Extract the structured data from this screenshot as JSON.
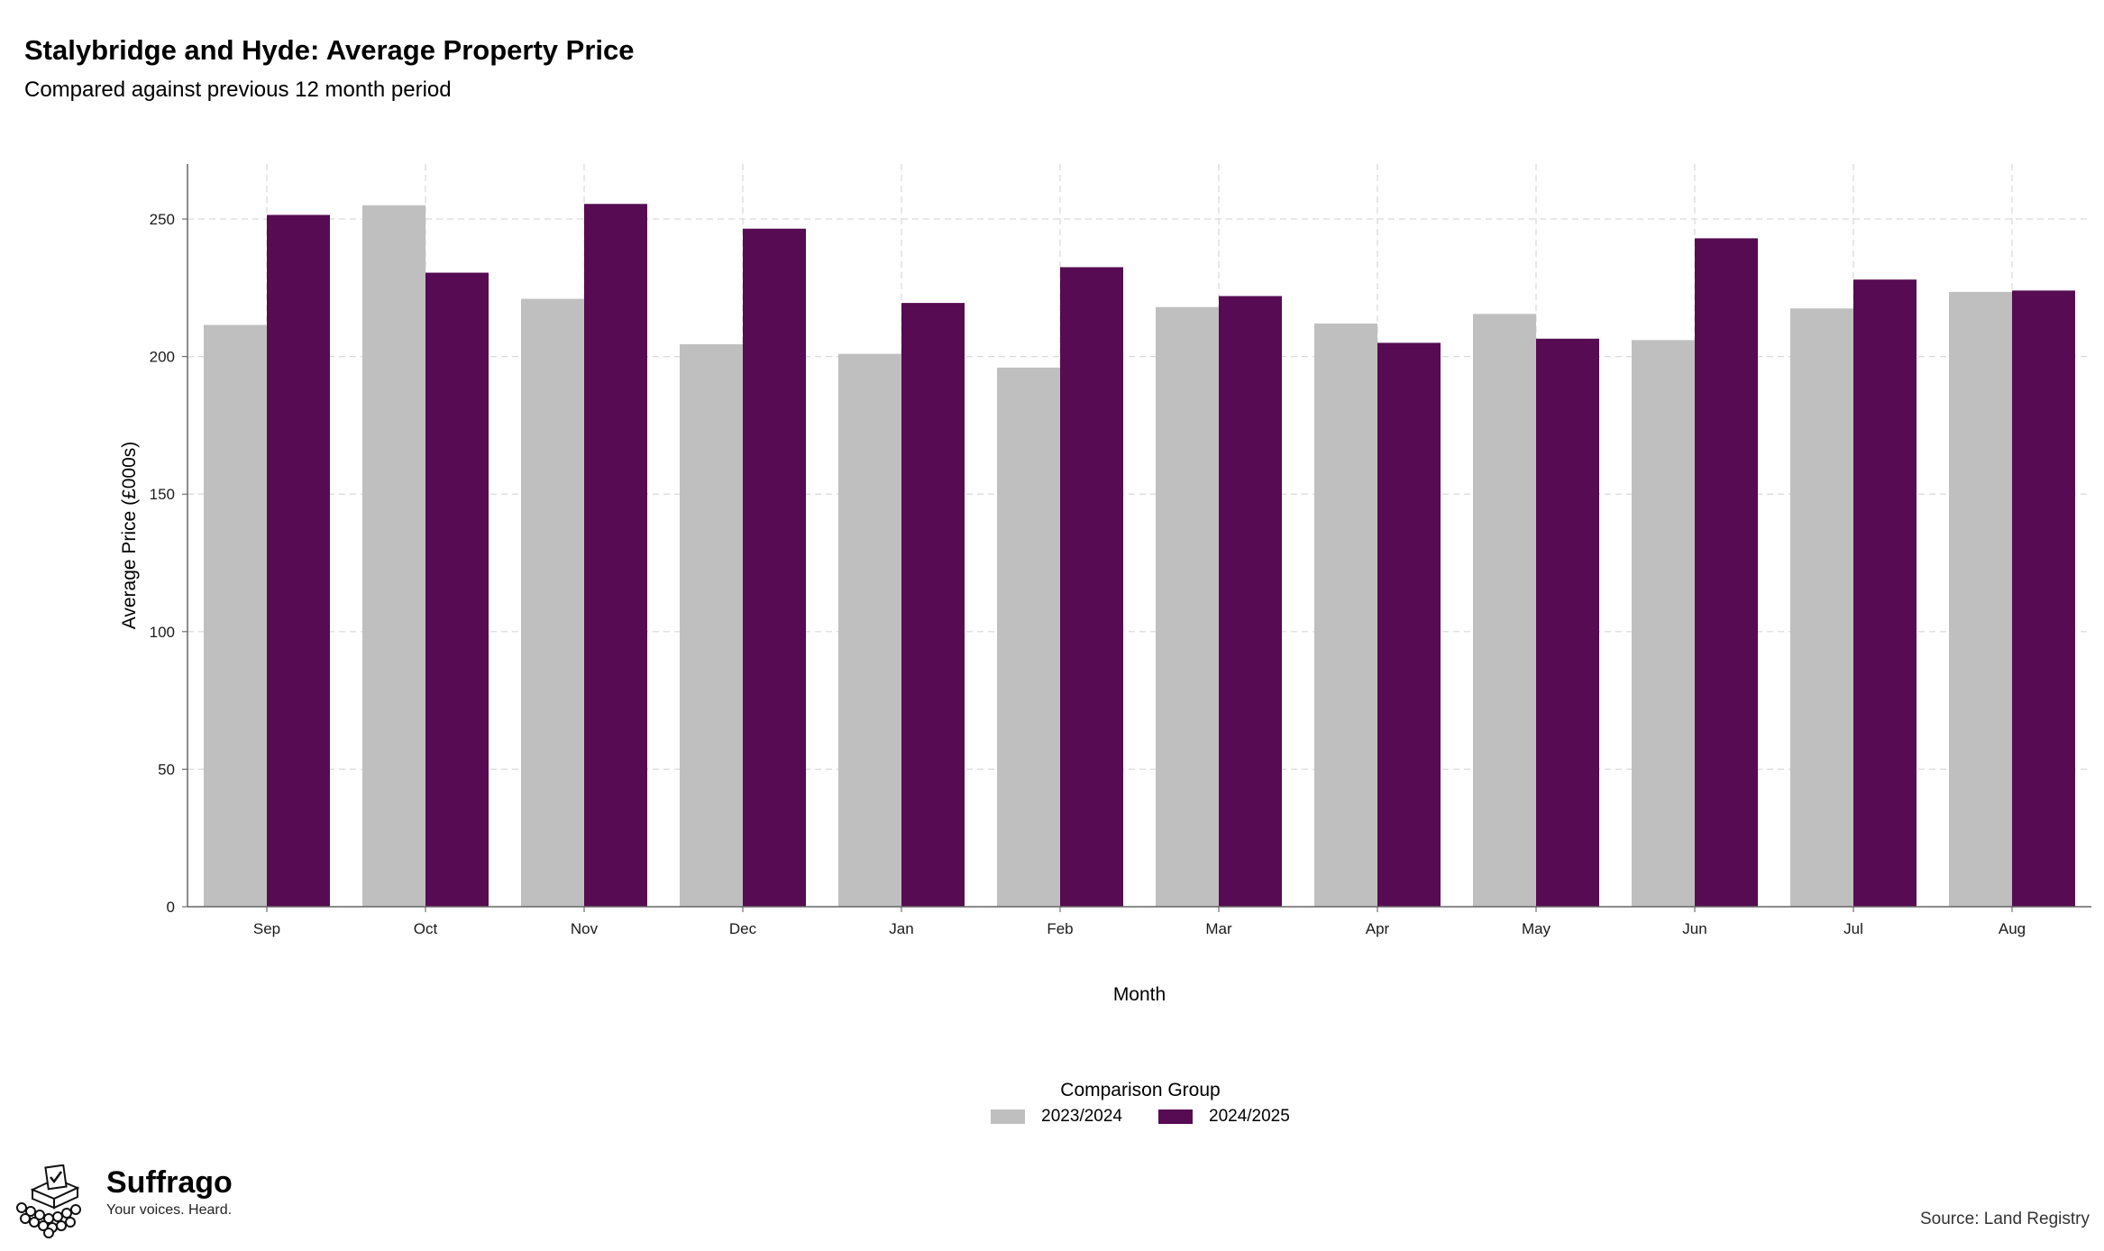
{
  "page": {
    "title": "Stalybridge and Hyde: Average Property Price",
    "subtitle": "Compared against previous 12 month period",
    "source": "Source: Land Registry"
  },
  "brand": {
    "name": "Suffrago",
    "tagline": "Your voices. Heard.",
    "logo_icon": "ballot-box-crowd-icon"
  },
  "legend": {
    "title": "Comparison Group",
    "placement": "bottom-center"
  },
  "chart_data": {
    "type": "bar",
    "title": "Stalybridge and Hyde: Average Property Price",
    "subtitle": "Compared against previous 12 month period",
    "xlabel": "Month",
    "ylabel": "Average Price (£000s)",
    "ylim": [
      0,
      270
    ],
    "yticks": [
      0,
      50,
      100,
      150,
      200,
      250
    ],
    "grid": true,
    "legend_placement": "bottom-center",
    "categories": [
      "Sep",
      "Oct",
      "Nov",
      "Dec",
      "Jan",
      "Feb",
      "Mar",
      "Apr",
      "May",
      "Jun",
      "Jul",
      "Aug"
    ],
    "series": [
      {
        "name": "2023/2024",
        "color": "#bfbfbf",
        "values": [
          211.5,
          255,
          221,
          204.5,
          201,
          196,
          218,
          212,
          215.5,
          206,
          217.5,
          223.5
        ]
      },
      {
        "name": "2024/2025",
        "color": "#560b52",
        "values": [
          251.5,
          230.5,
          255.5,
          246.5,
          219.5,
          232.5,
          222,
          205,
          206.5,
          243,
          228,
          224
        ]
      }
    ]
  }
}
